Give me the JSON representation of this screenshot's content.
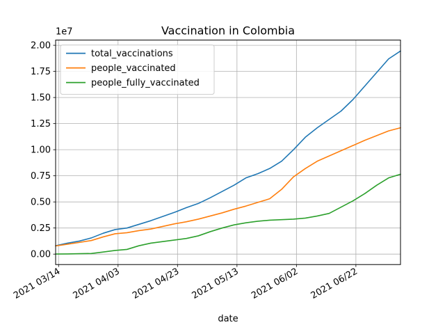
{
  "chart_data": {
    "type": "line",
    "title": "Vaccination in Colombia",
    "xlabel": "date",
    "ylabel": "",
    "y_offset_label": "1e7",
    "grid": true,
    "legend_position": "upper left",
    "xlim": [
      "2021-03-13",
      "2021-07-07"
    ],
    "ylim": [
      -1000000,
      20500000
    ],
    "x_ticks": [
      {
        "date": "2021-03-14",
        "label": "2021 03/14"
      },
      {
        "date": "2021-04-03",
        "label": "2021 04/03"
      },
      {
        "date": "2021-04-23",
        "label": "2021 04/23"
      },
      {
        "date": "2021-05-13",
        "label": "2021 05/13"
      },
      {
        "date": "2021-06-02",
        "label": "2021 06/02"
      },
      {
        "date": "2021-06-22",
        "label": "2021 06/22"
      }
    ],
    "y_ticks": [
      {
        "value": 0,
        "label": "0.00"
      },
      {
        "value": 2500000,
        "label": "0.25"
      },
      {
        "value": 5000000,
        "label": "0.50"
      },
      {
        "value": 7500000,
        "label": "0.75"
      },
      {
        "value": 10000000,
        "label": "1.00"
      },
      {
        "value": 12500000,
        "label": "1.25"
      },
      {
        "value": 15000000,
        "label": "1.50"
      },
      {
        "value": 17500000,
        "label": "1.75"
      },
      {
        "value": 20000000,
        "label": "2.00"
      }
    ],
    "x": [
      "2021-03-13",
      "2021-03-17",
      "2021-03-21",
      "2021-03-25",
      "2021-03-29",
      "2021-04-02",
      "2021-04-06",
      "2021-04-10",
      "2021-04-14",
      "2021-04-18",
      "2021-04-22",
      "2021-04-26",
      "2021-04-30",
      "2021-05-04",
      "2021-05-08",
      "2021-05-12",
      "2021-05-16",
      "2021-05-20",
      "2021-05-24",
      "2021-05-28",
      "2021-06-01",
      "2021-06-05",
      "2021-06-09",
      "2021-06-13",
      "2021-06-17",
      "2021-06-21",
      "2021-06-25",
      "2021-06-29",
      "2021-07-03",
      "2021-07-07"
    ],
    "series": [
      {
        "name": "total_vaccinations",
        "color": "#1f77b4",
        "values": [
          800000,
          1050000,
          1250000,
          1550000,
          2000000,
          2350000,
          2500000,
          2850000,
          3200000,
          3600000,
          4000000,
          4450000,
          4850000,
          5400000,
          6000000,
          6600000,
          7300000,
          7700000,
          8200000,
          8900000,
          10000000,
          11200000,
          12100000,
          12900000,
          13700000,
          14800000,
          16100000,
          17400000,
          18700000,
          19450000
        ]
      },
      {
        "name": "people_vaccinated",
        "color": "#ff7f0e",
        "values": [
          780000,
          950000,
          1120000,
          1300000,
          1650000,
          1950000,
          2050000,
          2250000,
          2400000,
          2650000,
          2900000,
          3100000,
          3350000,
          3650000,
          3950000,
          4300000,
          4600000,
          4950000,
          5300000,
          6200000,
          7400000,
          8200000,
          8900000,
          9400000,
          9900000,
          10400000,
          10900000,
          11350000,
          11800000,
          12100000
        ]
      },
      {
        "name": "people_fully_vaccinated",
        "color": "#2ca02c",
        "values": [
          10000,
          20000,
          40000,
          60000,
          200000,
          350000,
          450000,
          800000,
          1050000,
          1200000,
          1350000,
          1500000,
          1750000,
          2150000,
          2500000,
          2800000,
          3000000,
          3150000,
          3250000,
          3300000,
          3350000,
          3450000,
          3650000,
          3900000,
          4500000,
          5100000,
          5800000,
          6600000,
          7300000,
          7650000
        ]
      }
    ]
  }
}
